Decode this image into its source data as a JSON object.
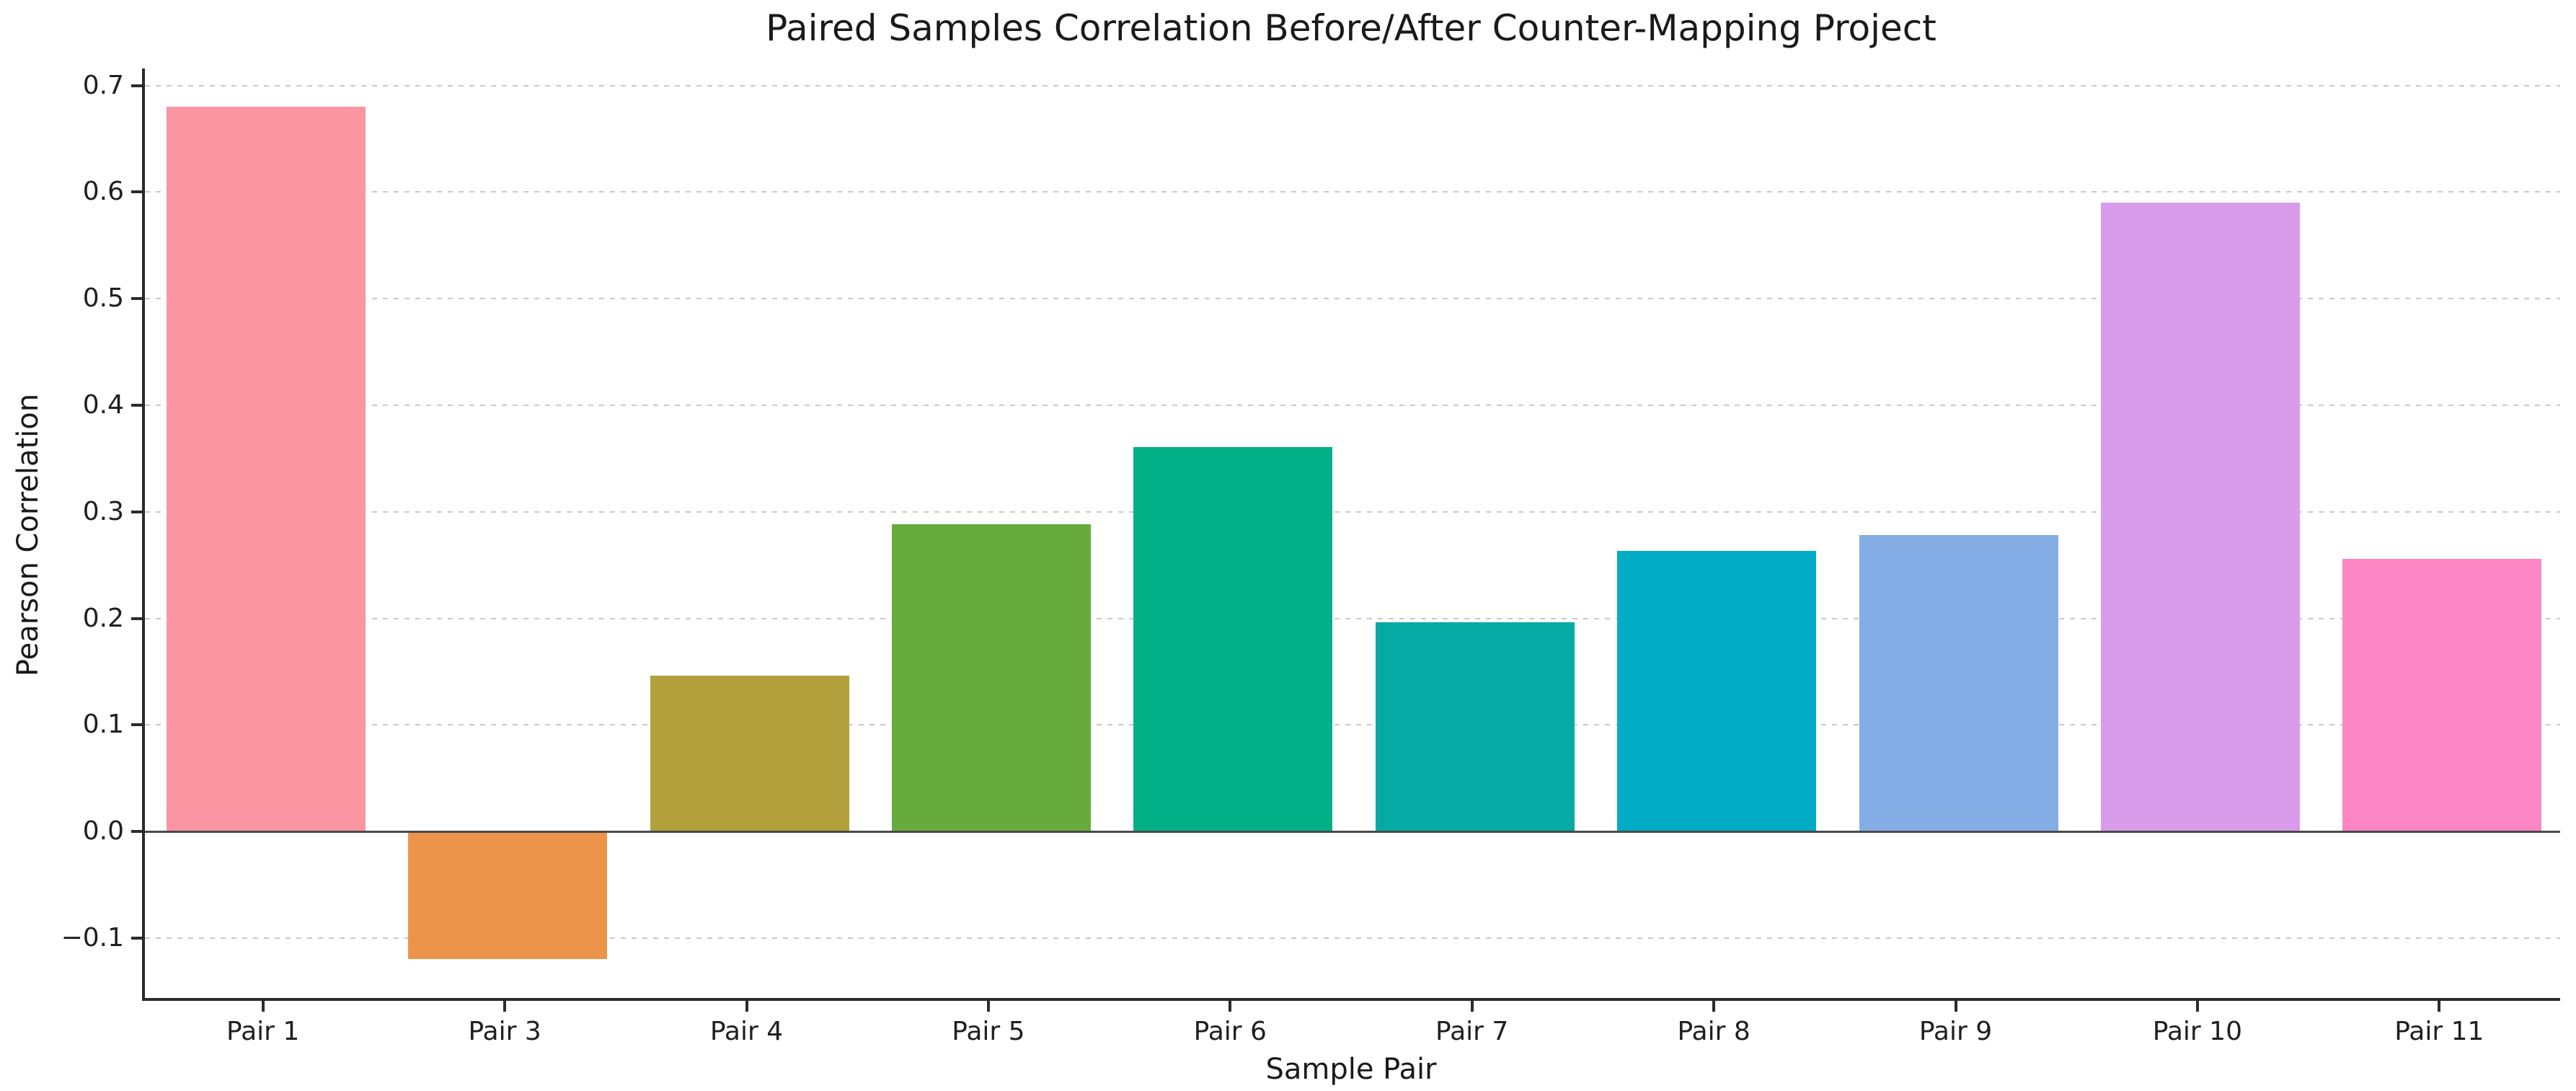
{
  "chart_data": {
    "type": "bar",
    "title": "Paired Samples Correlation Before/After Counter-Mapping Project",
    "xlabel": "Sample Pair",
    "ylabel": "Pearson Correlation",
    "categories": [
      "Pair 1",
      "Pair 3",
      "Pair 4",
      "Pair 5",
      "Pair 6",
      "Pair 7",
      "Pair 8",
      "Pair 9",
      "Pair 10",
      "Pair 11"
    ],
    "values": [
      0.68,
      -0.12,
      0.146,
      0.288,
      0.361,
      0.196,
      0.263,
      0.278,
      0.59,
      0.256
    ],
    "bar_colors": [
      "#FB95A2",
      "#EB944A",
      "#B2A03C",
      "#68AB3D",
      "#00AF85",
      "#04AAA3",
      "#00ACC6",
      "#85ADE5",
      "#D99CEA",
      "#FB86C3"
    ],
    "ylim": [
      -0.159,
      0.716
    ],
    "yticks": [
      0.7,
      0.6,
      0.5,
      0.4,
      0.3,
      0.2,
      0.1,
      0.0,
      -0.1
    ],
    "grid": "horizontal dashed at yticks, drawn below bars",
    "zero_line": true,
    "legend": null,
    "background_color": "#ffffff",
    "grid_color": "#c9c9c9",
    "axis_color": "#2b2b2b",
    "zero_line_color": "#4a4a4a",
    "text_color": "#1a1a1a"
  }
}
